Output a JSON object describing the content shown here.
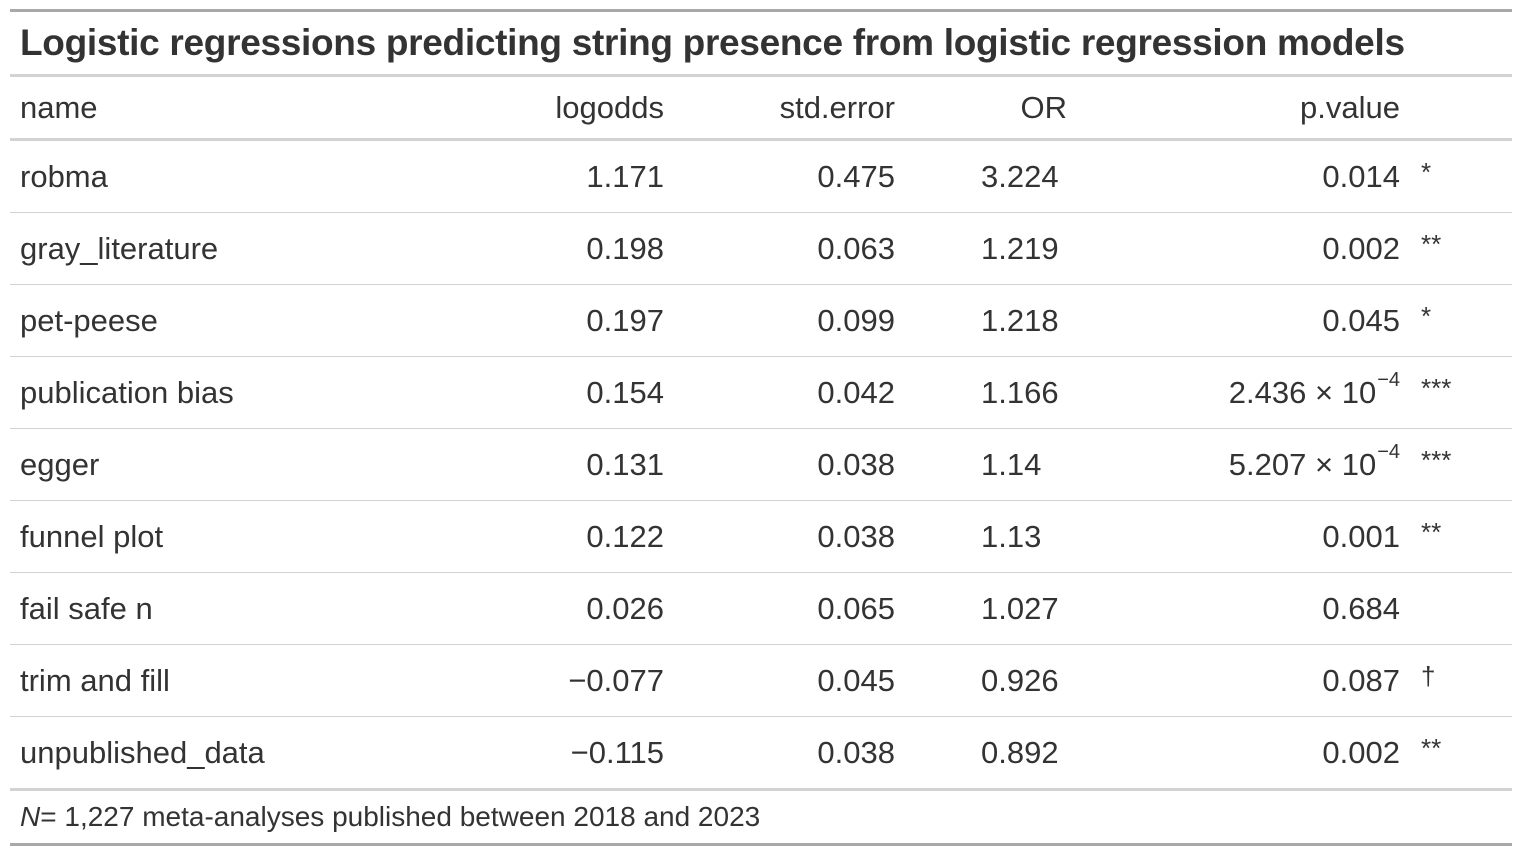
{
  "title": "Logistic regressions predicting string presence from logistic regression models",
  "headers": {
    "name": "name",
    "logodds": "logodds",
    "std_error": "std.error",
    "or": "OR",
    "p_value": "p.value"
  },
  "rows": [
    {
      "name": "robma",
      "logodds": "1.171",
      "std_error": "0.475",
      "or": "3.224",
      "p_value": "0.014",
      "p_exp": "",
      "sig": "*"
    },
    {
      "name": "gray_literature",
      "logodds": "0.198",
      "std_error": "0.063",
      "or": "1.219",
      "p_value": "0.002",
      "p_exp": "",
      "sig": "**"
    },
    {
      "name": "pet-peese",
      "logodds": "0.197",
      "std_error": "0.099",
      "or": "1.218",
      "p_value": "0.045",
      "p_exp": "",
      "sig": "*"
    },
    {
      "name": "publication bias",
      "logodds": "0.154",
      "std_error": "0.042",
      "or": "1.166",
      "p_value": "2.436 × 10",
      "p_exp": "−4",
      "sig": "***"
    },
    {
      "name": "egger",
      "logodds": "0.131",
      "std_error": "0.038",
      "or": "1.14",
      "p_value": "5.207 × 10",
      "p_exp": "−4",
      "sig": "***"
    },
    {
      "name": "funnel plot",
      "logodds": "0.122",
      "std_error": "0.038",
      "or": "1.13",
      "p_value": "0.001",
      "p_exp": "",
      "sig": "**"
    },
    {
      "name": "fail safe n",
      "logodds": "0.026",
      "std_error": "0.065",
      "or": "1.027",
      "p_value": "0.684",
      "p_exp": "",
      "sig": ""
    },
    {
      "name": "trim and fill",
      "logodds": "−0.077",
      "std_error": "0.045",
      "or": "0.926",
      "p_value": "0.087",
      "p_exp": "",
      "sig": "†"
    },
    {
      "name": "unpublished_data",
      "logodds": "−0.115",
      "std_error": "0.038",
      "or": "0.892",
      "p_value": "0.002",
      "p_exp": "",
      "sig": "**"
    }
  ],
  "footer": {
    "n_label": "N",
    "text": " = 1,227 meta-analyses published between 2018 and 2023"
  }
}
